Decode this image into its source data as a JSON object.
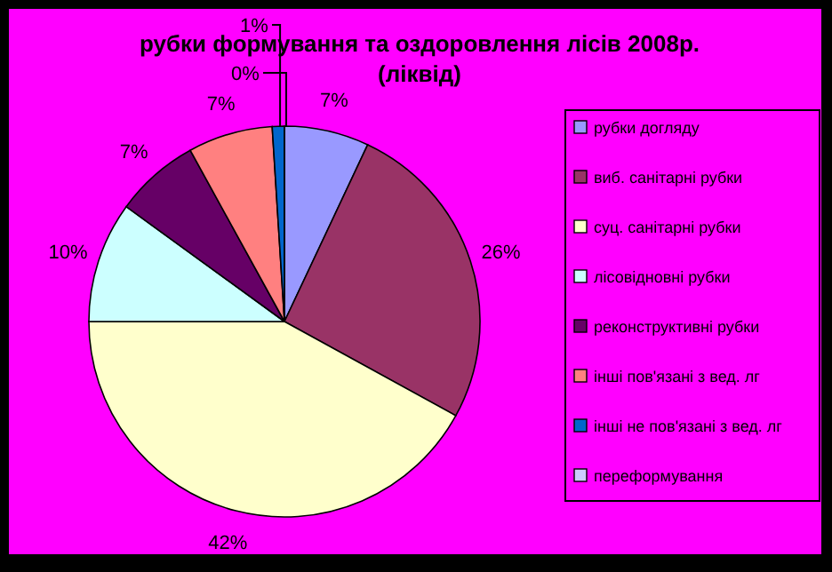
{
  "chart_data": {
    "type": "pie",
    "title": "рубки формування та оздоровлення лісів 2008р. (ліквід)",
    "categories": [
      "рубки догляду",
      "виб. санітарні рубки",
      "суц. санітарні рубки",
      "лісовідновні рубки",
      "реконструктивні рубки",
      "інші пов'язані з вед. лг",
      "інші не пов'язані з вед. лг",
      "переформування"
    ],
    "values": [
      7,
      26,
      42,
      10,
      7,
      7,
      1,
      0
    ],
    "colors": [
      "#9999ff",
      "#993366",
      "#ffffcc",
      "#ccffff",
      "#660066",
      "#ff8080",
      "#0066cc",
      "#ccccff"
    ],
    "value_labels": [
      "7%",
      "26%",
      "42%",
      "10%",
      "7%",
      "7%",
      "1%",
      "0%"
    ],
    "legend": "right"
  }
}
